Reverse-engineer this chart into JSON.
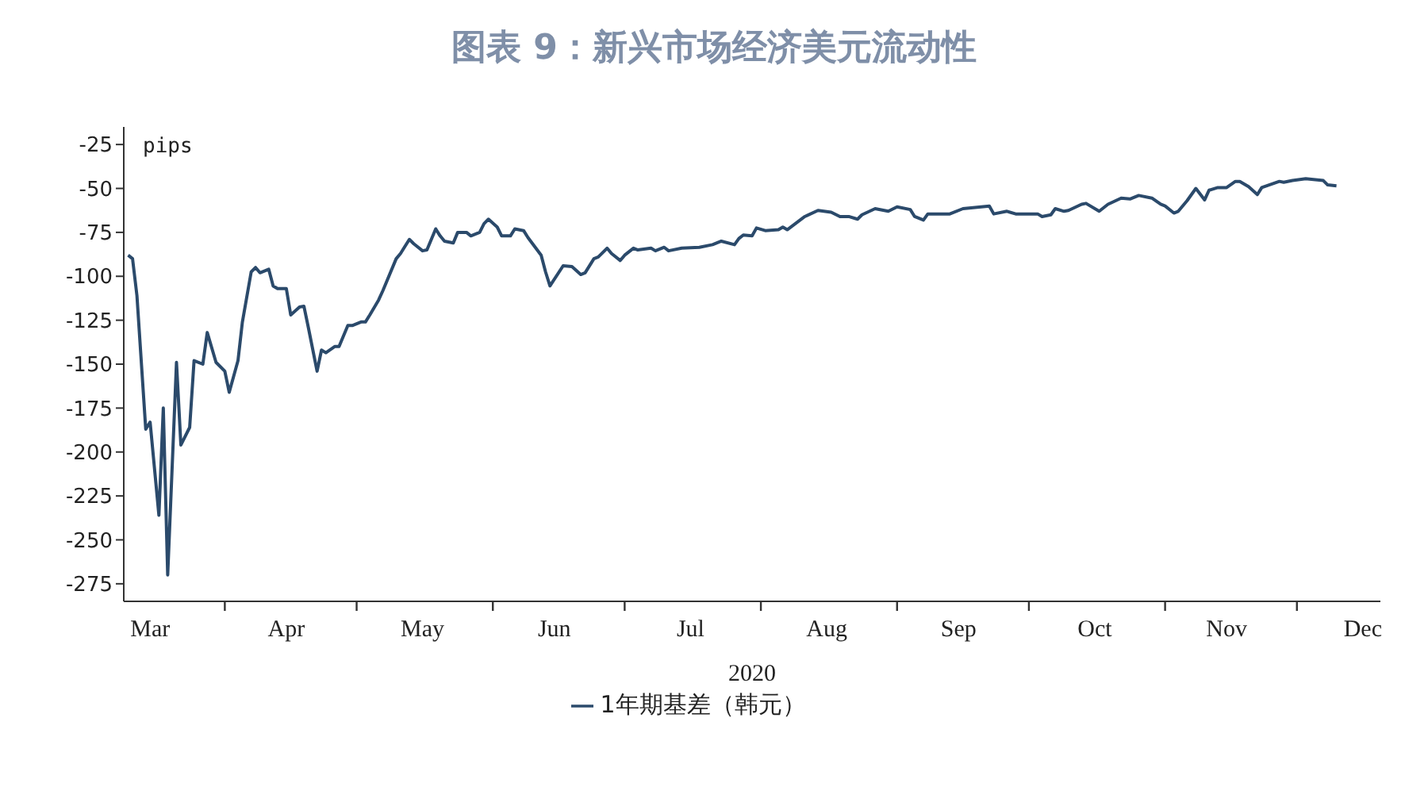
{
  "chart_data": {
    "type": "line",
    "title": "图表 9：新兴市场经济美元流动性",
    "xlabel": "2020",
    "ylabel": "pips",
    "x": [
      "2020-03-10",
      "2020-03-11",
      "2020-03-12",
      "2020-03-14",
      "2020-03-15",
      "2020-03-17",
      "2020-03-18",
      "2020-03-19",
      "2020-03-21",
      "2020-03-22",
      "2020-03-24",
      "2020-03-25",
      "2020-03-27",
      "2020-03-28",
      "2020-03-30",
      "2020-04-01",
      "2020-04-02",
      "2020-04-04",
      "2020-04-05",
      "2020-04-07",
      "2020-04-08",
      "2020-04-09",
      "2020-04-11",
      "2020-04-12",
      "2020-04-13",
      "2020-04-15",
      "2020-04-16",
      "2020-04-18",
      "2020-04-19",
      "2020-04-20",
      "2020-04-22",
      "2020-04-23",
      "2020-04-24",
      "2020-04-26",
      "2020-04-27",
      "2020-04-29",
      "2020-04-30",
      "2020-05-02",
      "2020-05-03",
      "2020-05-04",
      "2020-05-06",
      "2020-05-07",
      "2020-05-10",
      "2020-05-11",
      "2020-05-13",
      "2020-05-14",
      "2020-05-16",
      "2020-05-17",
      "2020-05-19",
      "2020-05-20",
      "2020-05-21",
      "2020-05-23",
      "2020-05-24",
      "2020-05-26",
      "2020-05-27",
      "2020-05-29",
      "2020-05-30",
      "2020-05-31",
      "2020-06-02",
      "2020-06-03",
      "2020-06-05",
      "2020-06-06",
      "2020-06-08",
      "2020-06-09",
      "2020-06-12",
      "2020-06-13",
      "2020-06-14",
      "2020-06-17",
      "2020-06-19",
      "2020-06-21",
      "2020-06-22",
      "2020-06-24",
      "2020-06-25",
      "2020-06-27",
      "2020-06-28",
      "2020-06-30",
      "2020-07-01",
      "2020-07-03",
      "2020-07-04",
      "2020-07-07",
      "2020-07-08",
      "2020-07-10",
      "2020-07-11",
      "2020-07-14",
      "2020-07-18",
      "2020-07-21",
      "2020-07-23",
      "2020-07-26",
      "2020-07-27",
      "2020-07-28",
      "2020-07-30",
      "2020-07-31",
      "2020-08-02",
      "2020-08-05",
      "2020-08-06",
      "2020-08-07",
      "2020-08-11",
      "2020-08-14",
      "2020-08-17",
      "2020-08-19",
      "2020-08-21",
      "2020-08-23",
      "2020-08-24",
      "2020-08-27",
      "2020-08-30",
      "2020-09-01",
      "2020-09-04",
      "2020-09-05",
      "2020-09-07",
      "2020-09-08",
      "2020-09-13",
      "2020-09-16",
      "2020-09-22",
      "2020-09-23",
      "2020-09-26",
      "2020-09-28",
      "2020-10-03",
      "2020-10-04",
      "2020-10-06",
      "2020-10-07",
      "2020-10-09",
      "2020-10-10",
      "2020-10-13",
      "2020-10-14",
      "2020-10-17",
      "2020-10-19",
      "2020-10-22",
      "2020-10-24",
      "2020-10-26",
      "2020-10-29",
      "2020-10-31",
      "2020-11-01",
      "2020-11-03",
      "2020-11-04",
      "2020-11-06",
      "2020-11-08",
      "2020-11-10",
      "2020-11-11",
      "2020-11-13",
      "2020-11-15",
      "2020-11-17",
      "2020-11-18",
      "2020-11-20",
      "2020-11-22",
      "2020-11-23",
      "2020-11-27",
      "2020-11-28",
      "2020-11-30",
      "2020-12-03",
      "2020-12-07",
      "2020-12-08",
      "2020-12-10"
    ],
    "series": [
      {
        "name": "1年期基差（韩元）",
        "color": "#2b4a6b",
        "values": [
          -88,
          -90,
          -111,
          -187,
          -183,
          -236,
          -175,
          -270,
          -149,
          -196,
          -186,
          -148,
          -150,
          -132,
          -149,
          -154,
          -166,
          -148,
          -126,
          -97.5,
          -95,
          -98,
          -96,
          -105.5,
          -107,
          -107,
          -122,
          -117.5,
          -117,
          -129,
          -154,
          -142,
          -143.5,
          -140,
          -140,
          -128,
          -128,
          -126,
          -126,
          -122,
          -113.5,
          -108,
          -90,
          -87,
          -79,
          -81.5,
          -85.5,
          -85,
          -73,
          -77,
          -80,
          -81,
          -75,
          -75,
          -77,
          -75,
          -70,
          -67.5,
          -72,
          -77,
          -77,
          -73,
          -74,
          -78,
          -88,
          -97.5,
          -105.5,
          -94,
          -94.5,
          -99,
          -98,
          -90,
          -89,
          -84,
          -87,
          -91,
          -88,
          -84,
          -85,
          -84,
          -85.5,
          -83.5,
          -85.5,
          -84,
          -83.5,
          -82,
          -80,
          -82,
          -78.5,
          -76.5,
          -77,
          -72.5,
          -74,
          -73.5,
          -72,
          -73.5,
          -66,
          -62.5,
          -63.5,
          -66,
          -66,
          -67.5,
          -65,
          -61.5,
          -63,
          -60.5,
          -62,
          -66,
          -68,
          -64.5,
          -64.5,
          -61.5,
          -60,
          -64.5,
          -63,
          -64.5,
          -64.5,
          -66,
          -65,
          -61.5,
          -63,
          -62.5,
          -59,
          -58.5,
          -63,
          -59,
          -55.5,
          -56,
          -54,
          -55.5,
          -59,
          -60,
          -64,
          -63,
          -57,
          -50,
          -56.5,
          -51,
          -49.5,
          -49.5,
          -46,
          -46,
          -49,
          -53.5,
          -49.5,
          -46,
          -46.5,
          -45.5,
          -44.5,
          -45.5,
          -48,
          -48.5
        ]
      }
    ],
    "xlim": [
      "2020-03-09",
      "2020-12-20"
    ],
    "xticks": [
      {
        "value": "2020-03-15",
        "label": "Mar"
      },
      {
        "value": "2020-04-01",
        "label": null
      },
      {
        "value": "2020-04-15",
        "label": "Apr"
      },
      {
        "value": "2020-05-01",
        "label": null
      },
      {
        "value": "2020-05-16",
        "label": "May"
      },
      {
        "value": "2020-06-01",
        "label": null
      },
      {
        "value": "2020-06-15",
        "label": "Jun"
      },
      {
        "value": "2020-07-01",
        "label": null
      },
      {
        "value": "2020-07-16",
        "label": "Jul"
      },
      {
        "value": "2020-08-01",
        "label": null
      },
      {
        "value": "2020-08-16",
        "label": "Aug"
      },
      {
        "value": "2020-09-01",
        "label": null
      },
      {
        "value": "2020-09-15",
        "label": "Sep"
      },
      {
        "value": "2020-10-01",
        "label": null
      },
      {
        "value": "2020-10-16",
        "label": "Oct"
      },
      {
        "value": "2020-11-01",
        "label": null
      },
      {
        "value": "2020-11-15",
        "label": "Nov"
      },
      {
        "value": "2020-12-01",
        "label": null
      },
      {
        "value": "2020-12-16",
        "label": "Dec"
      }
    ],
    "ylim": [
      -285,
      -15
    ],
    "yticks": [
      -25,
      -50,
      -75,
      -100,
      -125,
      -150,
      -175,
      -200,
      -225,
      -250,
      -275
    ],
    "grid": false,
    "legend": "bottom",
    "marker": "none",
    "line_style": "solid"
  }
}
